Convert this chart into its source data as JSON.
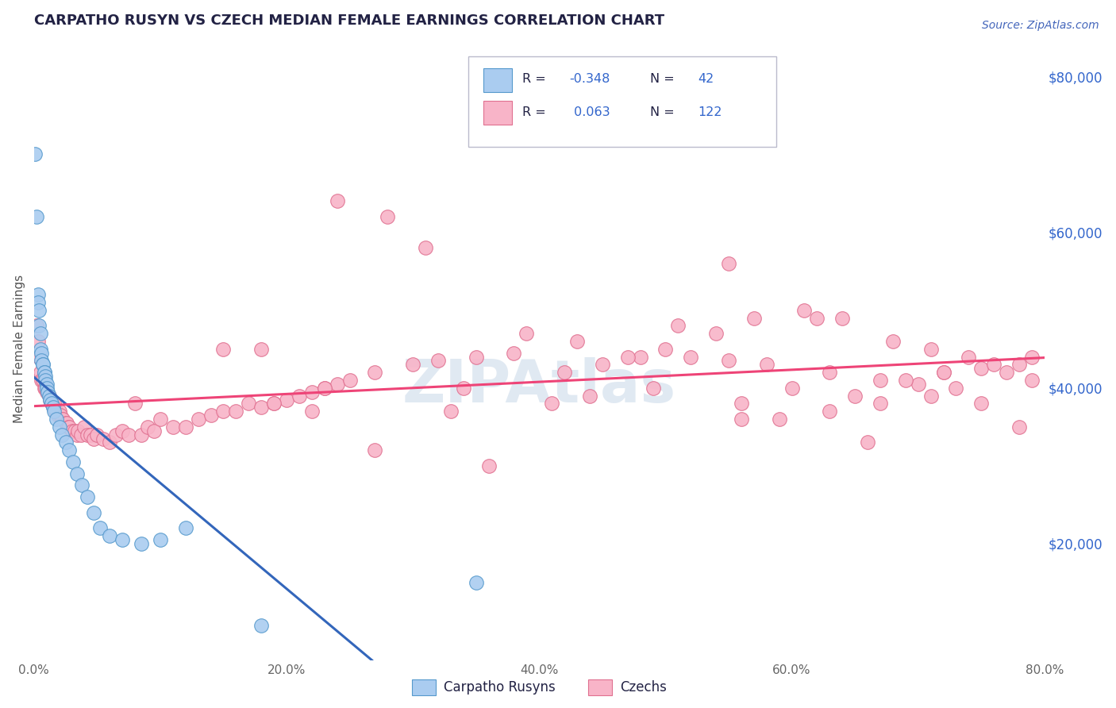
{
  "title": "CARPATHO RUSYN VS CZECH MEDIAN FEMALE EARNINGS CORRELATION CHART",
  "source_text": "Source: ZipAtlas.com",
  "ylabel": "Median Female Earnings",
  "xmin": 0.0,
  "xmax": 0.8,
  "ymin": 5000,
  "ymax": 85000,
  "yticks": [
    20000,
    40000,
    60000,
    80000
  ],
  "ytick_labels": [
    "$20,000",
    "$40,000",
    "$60,000",
    "$80,000"
  ],
  "xticks": [
    0.0,
    0.2,
    0.4,
    0.6,
    0.8
  ],
  "xtick_labels": [
    "0.0%",
    "20.0%",
    "40.0%",
    "60.0%",
    "80.0%"
  ],
  "blue_color": "#aaccf0",
  "blue_edge_color": "#5599cc",
  "pink_color": "#f8b4c8",
  "pink_edge_color": "#e07090",
  "blue_line_color": "#3366bb",
  "pink_line_color": "#ee4477",
  "blue_R": -0.348,
  "blue_N": 42,
  "pink_R": 0.063,
  "pink_N": 122,
  "watermark": "ZIPAtlas",
  "watermark_color": "#c8d8e8",
  "background_color": "#ffffff",
  "grid_color": "#dddddd",
  "title_color": "#222244",
  "ylabel_color": "#555555",
  "legend_label_blue": "Carpatho Rusyns",
  "legend_label_pink": "Czechs",
  "blue_scatter_x": [
    0.001,
    0.002,
    0.003,
    0.003,
    0.004,
    0.004,
    0.005,
    0.005,
    0.006,
    0.006,
    0.007,
    0.007,
    0.008,
    0.008,
    0.009,
    0.009,
    0.01,
    0.01,
    0.011,
    0.012,
    0.013,
    0.014,
    0.015,
    0.016,
    0.018,
    0.02,
    0.022,
    0.025,
    0.028,
    0.031,
    0.034,
    0.038,
    0.042,
    0.047,
    0.052,
    0.06,
    0.07,
    0.085,
    0.1,
    0.12,
    0.18,
    0.35
  ],
  "blue_scatter_y": [
    70000,
    62000,
    52000,
    51000,
    50000,
    48000,
    47000,
    45000,
    44500,
    43500,
    43000,
    43000,
    42000,
    42000,
    41500,
    41000,
    40500,
    40000,
    39500,
    39000,
    38500,
    38000,
    37500,
    37000,
    36000,
    35000,
    34000,
    33000,
    32000,
    30500,
    29000,
    27500,
    26000,
    24000,
    22000,
    21000,
    20500,
    20000,
    20500,
    22000,
    9500,
    15000
  ],
  "pink_scatter_x": [
    0.002,
    0.003,
    0.004,
    0.005,
    0.006,
    0.007,
    0.008,
    0.009,
    0.01,
    0.012,
    0.013,
    0.014,
    0.015,
    0.016,
    0.017,
    0.018,
    0.019,
    0.02,
    0.021,
    0.022,
    0.023,
    0.025,
    0.026,
    0.027,
    0.028,
    0.03,
    0.032,
    0.034,
    0.035,
    0.037,
    0.04,
    0.042,
    0.045,
    0.047,
    0.05,
    0.055,
    0.06,
    0.065,
    0.07,
    0.075,
    0.08,
    0.085,
    0.09,
    0.095,
    0.1,
    0.11,
    0.12,
    0.13,
    0.14,
    0.15,
    0.16,
    0.17,
    0.18,
    0.19,
    0.2,
    0.21,
    0.22,
    0.23,
    0.24,
    0.25,
    0.27,
    0.3,
    0.32,
    0.35,
    0.38,
    0.42,
    0.45,
    0.48,
    0.5,
    0.52,
    0.55,
    0.58,
    0.6,
    0.63,
    0.65,
    0.67,
    0.7,
    0.72,
    0.75,
    0.78,
    0.79,
    0.24,
    0.28,
    0.31,
    0.36,
    0.39,
    0.43,
    0.47,
    0.51,
    0.54,
    0.57,
    0.61,
    0.64,
    0.68,
    0.71,
    0.74,
    0.76,
    0.77,
    0.79,
    0.18,
    0.55,
    0.73,
    0.15,
    0.62,
    0.44,
    0.34,
    0.22,
    0.19,
    0.27,
    0.33,
    0.41,
    0.49,
    0.56,
    0.59,
    0.66,
    0.69,
    0.72,
    0.75,
    0.78,
    0.56,
    0.63,
    0.67,
    0.71,
    0.23
  ],
  "pink_scatter_y": [
    48000,
    46000,
    44000,
    42000,
    41000,
    41000,
    40000,
    40000,
    39500,
    39000,
    38500,
    38000,
    37500,
    38000,
    37000,
    37000,
    36500,
    37000,
    36500,
    36000,
    36000,
    35500,
    35500,
    35000,
    35000,
    34500,
    34500,
    34000,
    34500,
    34000,
    35000,
    34000,
    34000,
    33500,
    34000,
    33500,
    33000,
    34000,
    34500,
    34000,
    38000,
    34000,
    35000,
    34500,
    36000,
    35000,
    35000,
    36000,
    36500,
    37000,
    37000,
    38000,
    37500,
    38000,
    38500,
    39000,
    39500,
    40000,
    40500,
    41000,
    42000,
    43000,
    43500,
    44000,
    44500,
    42000,
    43000,
    44000,
    45000,
    44000,
    43500,
    43000,
    40000,
    42000,
    39000,
    41000,
    40500,
    42000,
    42500,
    43000,
    44000,
    64000,
    62000,
    58000,
    30000,
    47000,
    46000,
    44000,
    48000,
    47000,
    49000,
    50000,
    49000,
    46000,
    45000,
    44000,
    43000,
    42000,
    41000,
    45000,
    56000,
    40000,
    45000,
    49000,
    39000,
    40000,
    37000,
    38000,
    32000,
    37000,
    38000,
    40000,
    38000,
    36000,
    33000,
    41000,
    42000,
    38000,
    35000,
    36000,
    37000,
    38000,
    39000,
    40000
  ]
}
